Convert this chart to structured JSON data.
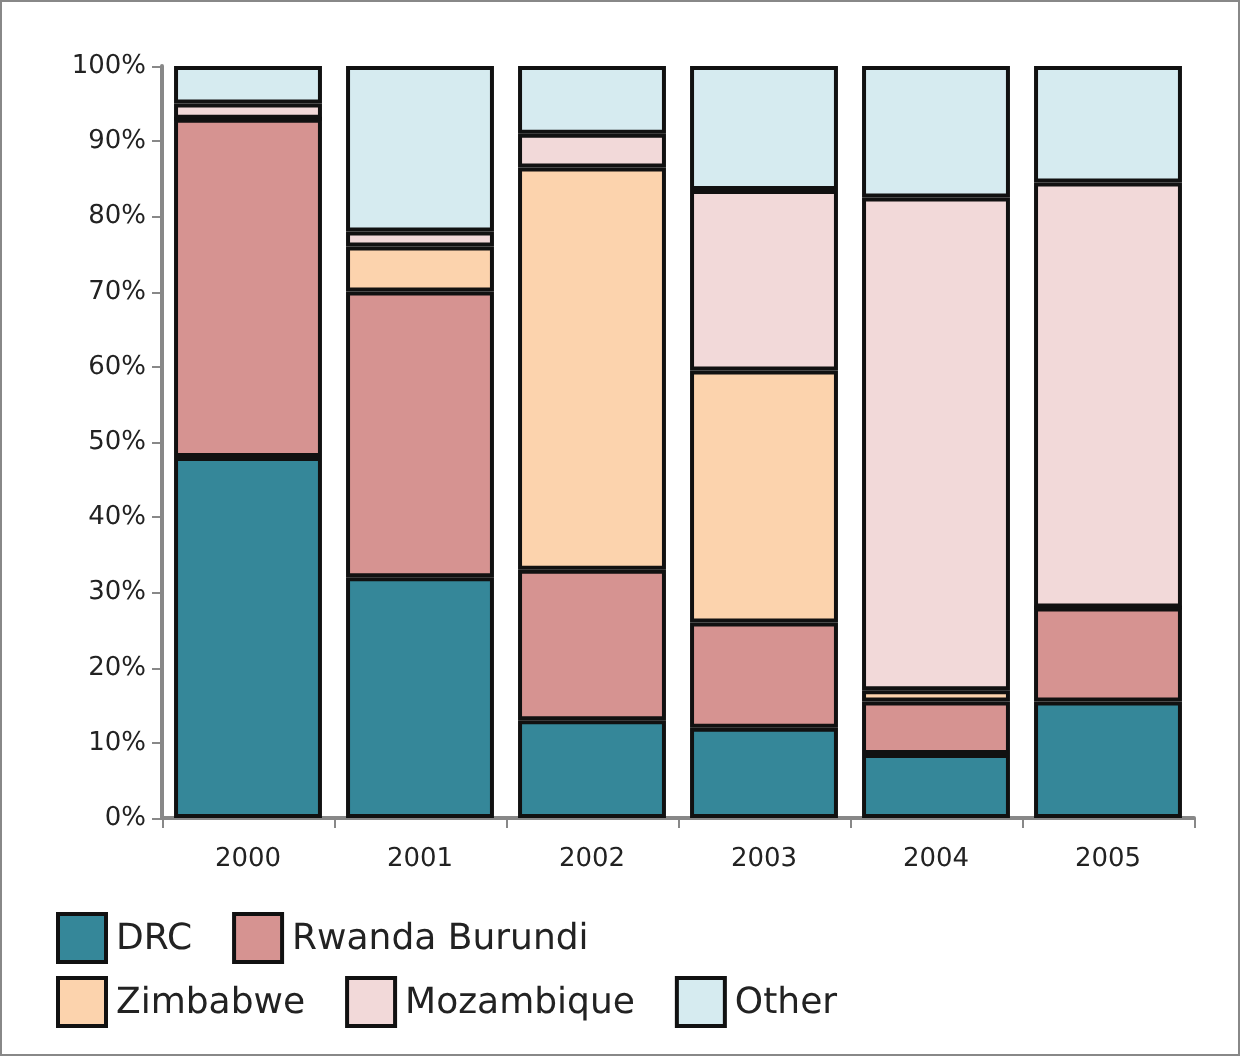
{
  "chart_data": {
    "type": "bar",
    "stacked": true,
    "categories": [
      "2000",
      "2001",
      "2002",
      "2003",
      "2004",
      "2005"
    ],
    "series": [
      {
        "name": "DRC",
        "color": "#358799",
        "values": [
          48,
          32,
          13,
          12,
          8.5,
          15.5
        ]
      },
      {
        "name": "Rwanda Burundi",
        "color": "#d69391",
        "values": [
          45,
          38,
          20,
          14,
          7,
          12.5
        ]
      },
      {
        "name": "Zimbabwe",
        "color": "#fcd3ad",
        "values": [
          0,
          6,
          53.5,
          33.5,
          1.5,
          0
        ]
      },
      {
        "name": "Mozambique",
        "color": "#f2d9d9",
        "values": [
          2,
          2,
          4.5,
          24,
          65.5,
          56.5
        ]
      },
      {
        "name": "Other",
        "color": "#d6ebf0",
        "values": [
          5,
          22,
          9,
          16.5,
          17.5,
          15.5
        ]
      }
    ],
    "ylim": [
      0,
      100
    ],
    "yticks": [
      {
        "value": 0,
        "label": "0%"
      },
      {
        "value": 10,
        "label": "10%"
      },
      {
        "value": 20,
        "label": "20%"
      },
      {
        "value": 30,
        "label": "30%"
      },
      {
        "value": 40,
        "label": "40%"
      },
      {
        "value": 50,
        "label": "50%"
      },
      {
        "value": 60,
        "label": "60%"
      },
      {
        "value": 70,
        "label": "70%"
      },
      {
        "value": 80,
        "label": "80%"
      },
      {
        "value": 90,
        "label": "90%"
      },
      {
        "value": 100,
        "label": "100%"
      }
    ],
    "grid": false,
    "legend": "bottom left"
  }
}
